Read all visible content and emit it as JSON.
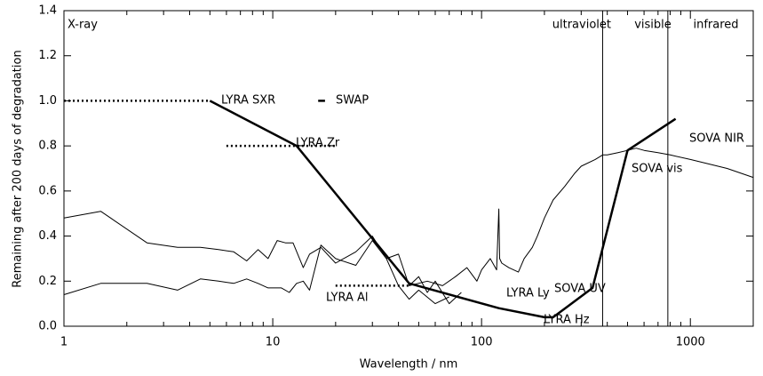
{
  "chart_data": {
    "type": "line",
    "xscale": "log",
    "xlabel": "Wavelength / nm",
    "ylabel": "Remaining after 200 days of degradation",
    "xlim": [
      1,
      2000
    ],
    "ylim": [
      0,
      1.4
    ],
    "xticks": [
      1,
      10,
      100,
      1000
    ],
    "yticks": [
      {
        "value": 0,
        "label": "0.0"
      },
      0.2,
      0.4,
      0.6,
      0.8,
      {
        "value": 1,
        "label": "1.0"
      },
      1.2,
      1.4
    ],
    "vlines": [
      380,
      780
    ],
    "regions": [
      "X-ray",
      "ultraviolet",
      "visible",
      "infrared"
    ],
    "annotations": [
      "LYRA SXR",
      "SWAP",
      "LYRA Zr",
      "LYRA Al",
      "LYRA Ly",
      "LYRA Hz",
      "SOVA UV",
      "SOVA vis",
      "SOVA NIR"
    ],
    "series": [
      {
        "color": "#000000",
        "style": "solid",
        "weight": "thin",
        "x": [
          1,
          1.5,
          2.5,
          3.5,
          4.5,
          5.5,
          6.5,
          7.5,
          8.5,
          9.5,
          10.5,
          11.5,
          12.5,
          14,
          15,
          17,
          20,
          25,
          30,
          35,
          40,
          45,
          50,
          55,
          60,
          70,
          80
        ],
        "values": [
          0.48,
          0.51,
          0.37,
          0.35,
          0.35,
          0.34,
          0.33,
          0.29,
          0.34,
          0.3,
          0.38,
          0.37,
          0.37,
          0.26,
          0.32,
          0.35,
          0.28,
          0.33,
          0.4,
          0.3,
          0.32,
          0.18,
          0.22,
          0.15,
          0.2,
          0.1,
          0.15
        ]
      },
      {
        "color": "#000000",
        "style": "solid",
        "weight": "thin",
        "x": [
          1,
          1.5,
          2.5,
          3.5,
          4.5,
          5.5,
          6.5,
          7.5,
          8.5,
          9.5,
          11,
          12,
          13,
          14,
          15,
          17,
          20,
          25,
          30,
          35,
          40,
          45,
          50,
          60,
          70
        ],
        "values": [
          0.14,
          0.19,
          0.19,
          0.16,
          0.21,
          0.2,
          0.19,
          0.21,
          0.19,
          0.17,
          0.17,
          0.15,
          0.19,
          0.2,
          0.16,
          0.36,
          0.3,
          0.27,
          0.38,
          0.3,
          0.18,
          0.12,
          0.16,
          0.1,
          0.13
        ]
      },
      {
        "color": "#000000",
        "style": "solid",
        "weight": "thin",
        "x": [
          45,
          55,
          65,
          75,
          85,
          95,
          100,
          110,
          118,
          121,
          122,
          125,
          135,
          150,
          160,
          175,
          185,
          200,
          220,
          250,
          280,
          300,
          350,
          380,
          400,
          450,
          500,
          550,
          600,
          700,
          800,
          1000,
          1500,
          2000
        ],
        "values": [
          0.18,
          0.2,
          0.18,
          0.22,
          0.26,
          0.2,
          0.25,
          0.3,
          0.25,
          0.52,
          0.3,
          0.28,
          0.26,
          0.24,
          0.3,
          0.35,
          0.4,
          0.48,
          0.56,
          0.62,
          0.68,
          0.71,
          0.74,
          0.76,
          0.76,
          0.77,
          0.78,
          0.79,
          0.78,
          0.77,
          0.76,
          0.74,
          0.7,
          0.66
        ]
      },
      {
        "color": "#000000",
        "style": "solid",
        "weight": "thick",
        "x": [
          5,
          13,
          45,
          121,
          200,
          220,
          340,
          500,
          850
        ],
        "values": [
          1.0,
          0.8,
          0.19,
          0.08,
          0.04,
          0.04,
          0.17,
          0.78,
          0.92
        ]
      },
      {
        "color": "#000000",
        "style": "dotted",
        "weight": "thick",
        "x": [
          1,
          5
        ],
        "values": [
          1.0,
          1.0
        ]
      },
      {
        "color": "#000000",
        "style": "dotted",
        "weight": "thick",
        "x": [
          6,
          20
        ],
        "values": [
          0.8,
          0.8
        ]
      },
      {
        "color": "#000000",
        "style": "dotted",
        "weight": "thick",
        "x": [
          20,
          45
        ],
        "values": [
          0.18,
          0.18
        ]
      },
      {
        "color": "#000000",
        "style": "solid",
        "weight": "thick",
        "x": [
          16.5,
          17.8
        ],
        "values": [
          1.0,
          1.0
        ]
      }
    ]
  }
}
